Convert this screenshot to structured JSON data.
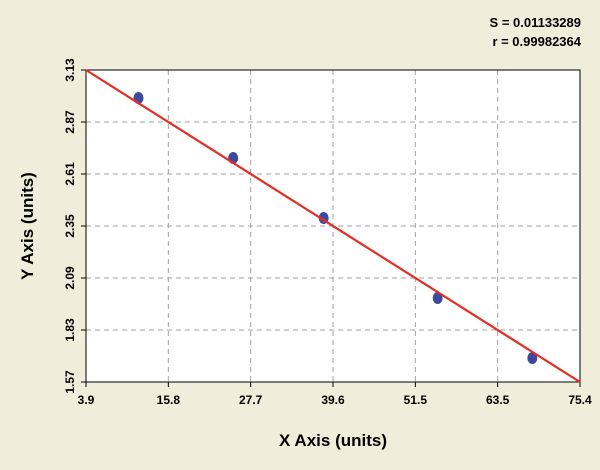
{
  "stats": {
    "s_label": "S = 0.01133289",
    "r_label": "r = 0.99982364"
  },
  "chart_data": {
    "type": "scatter",
    "xlabel": "X Axis (units)",
    "ylabel": "Y Axis (units)",
    "xlim": [
      3.9,
      75.4
    ],
    "ylim": [
      1.57,
      3.13
    ],
    "x_ticks": [
      "3.9",
      "15.8",
      "27.7",
      "39.6",
      "51.5",
      "63.5",
      "75.4"
    ],
    "y_ticks": [
      "3.13",
      "2.87",
      "2.61",
      "2.35",
      "2.09",
      "1.83",
      "1.57"
    ],
    "grid": true,
    "points": [
      {
        "x": 11.5,
        "y": 2.99
      },
      {
        "x": 25.2,
        "y": 2.69
      },
      {
        "x": 38.3,
        "y": 2.39
      },
      {
        "x": 54.8,
        "y": 1.99
      },
      {
        "x": 68.5,
        "y": 1.69
      }
    ],
    "fit_line": {
      "x": [
        3.9,
        75.4
      ],
      "y": [
        3.13,
        1.57
      ]
    },
    "colors": {
      "points": "#3b4aa0",
      "line": "#e52d24",
      "plot_bg": "#ffffff",
      "grid": "#a0a0a0"
    }
  }
}
